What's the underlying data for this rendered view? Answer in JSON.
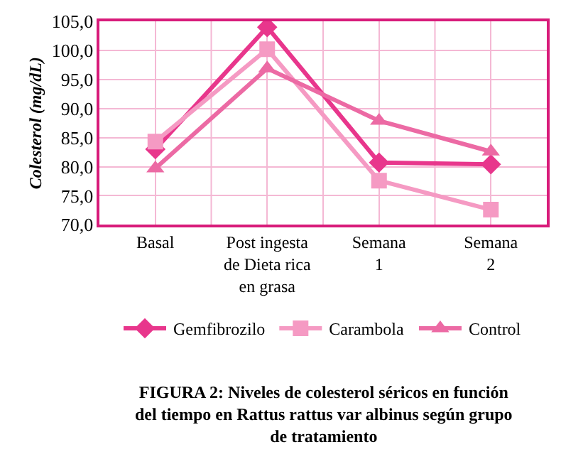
{
  "chart_data": {
    "type": "line",
    "ylabel": "Colesterol (mg/dL)",
    "categories": [
      "Basal",
      "Post ingesta\nde Dieta rica\nen grasa",
      "Semana\n1",
      "Semana\n2"
    ],
    "series": [
      {
        "name": "Gemfibrozilo",
        "color": "#e8368c",
        "marker": "diamond",
        "values": [
          83.0,
          104.0,
          80.7,
          80.4
        ]
      },
      {
        "name": "Carambola",
        "color": "#f59ac3",
        "marker": "square",
        "values": [
          84.3,
          100.2,
          77.6,
          72.6
        ]
      },
      {
        "name": "Control",
        "color": "#ec6aa4",
        "marker": "triangle",
        "values": [
          79.7,
          96.9,
          87.9,
          82.6
        ]
      }
    ],
    "ylim": [
      70,
      105
    ],
    "yticks": [
      {
        "value": 70,
        "label": "70,0"
      },
      {
        "value": 75,
        "label": "75,0"
      },
      {
        "value": 80,
        "label": "80,0"
      },
      {
        "value": 85,
        "label": "85,0"
      },
      {
        "value": 90,
        "label": "90,0"
      },
      {
        "value": 95,
        "label": "95,0"
      },
      {
        "value": 100,
        "label": "100,0"
      },
      {
        "value": 105,
        "label": "105,0"
      }
    ],
    "grid": true,
    "legend": "bottom",
    "line_style": "solid",
    "annotations": [
      "FIGURA 2: Niveles de colesterol séricos en función\ndel tiempo en Rattus rattus var albinus según grupo\nde tratamiento"
    ]
  }
}
